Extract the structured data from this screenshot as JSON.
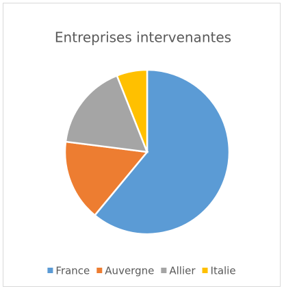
{
  "chart_data": {
    "type": "pie",
    "title": "Entreprises intervenantes",
    "categories": [
      "France",
      "Auvergne",
      "Allier",
      "Italie"
    ],
    "values": [
      61,
      16,
      17,
      6
    ],
    "colors": [
      "#5b9bd5",
      "#ed7d31",
      "#a5a5a5",
      "#ffc000"
    ],
    "legend": "bottom"
  }
}
